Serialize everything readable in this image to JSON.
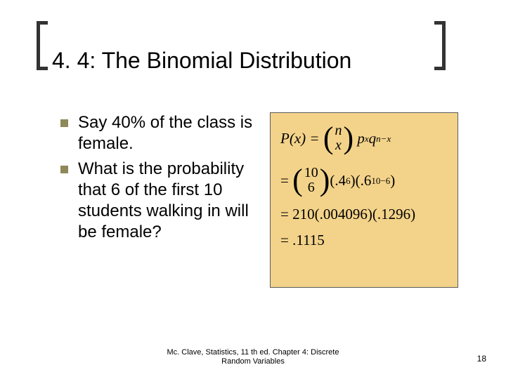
{
  "title": "4. 4: The Binomial Distribution",
  "bullets": [
    "Say 40% of the class is female.",
    "What is the probability that 6 of the first 10 students walking in will be female?"
  ],
  "formula": {
    "background_color": "#f3d38a",
    "border_color": "#5a5a5a",
    "line1_prefix": "P(x) =",
    "binom1_top": "n",
    "binom1_bottom": "x",
    "line1_px": "p",
    "line1_px_exp": "x",
    "line1_q": "q",
    "line1_q_exp": "n−x",
    "line2_eq": "=",
    "binom2_top": "10",
    "binom2_bottom": "6",
    "line2_a": "(.4",
    "line2_a_exp": "6",
    "line2_b": ")(.6",
    "line2_b_exp": "10−6",
    "line2_end": ")",
    "line3": "= 210(.004096)(.1296)",
    "line4": "= .1115"
  },
  "footer_line1": "Mc. Clave, Statistics, 11 th ed. Chapter 4: Discrete",
  "footer_line2": "Random Variables",
  "page_number": "18",
  "colors": {
    "bullet_square": "#8f8859",
    "bracket": "#333333",
    "text": "#000000",
    "bg": "#ffffff"
  }
}
